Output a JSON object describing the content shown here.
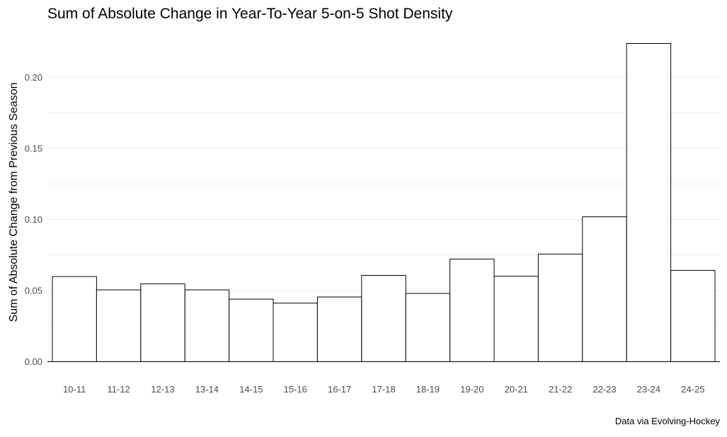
{
  "chart_data": {
    "type": "bar",
    "title": "Sum of Absolute Change in Year-To-Year 5-on-5 Shot Density",
    "xlabel": "",
    "ylabel": "Sum of Absolute Change from Previous Season",
    "caption": "Data via Evolving-Hockey",
    "categories": [
      "10-11",
      "11-12",
      "12-13",
      "13-14",
      "14-15",
      "15-16",
      "16-17",
      "17-18",
      "18-19",
      "19-20",
      "20-21",
      "21-22",
      "22-23",
      "23-24",
      "24-25"
    ],
    "values": [
      0.0599,
      0.0505,
      0.0548,
      0.0505,
      0.044,
      0.0412,
      0.0455,
      0.0607,
      0.048,
      0.0722,
      0.0601,
      0.0757,
      0.1019,
      0.2238,
      0.0642
    ],
    "ylim": [
      0,
      0.2238
    ],
    "yticks": [
      0.0,
      0.05,
      0.1,
      0.15,
      0.2
    ],
    "ytick_labels": [
      "0.00",
      "0.05",
      "0.10",
      "0.15",
      "0.20"
    ],
    "grid": true,
    "bar_fill": "#ffffff",
    "bar_stroke": "#000000",
    "grid_color": "#ebebeb"
  }
}
